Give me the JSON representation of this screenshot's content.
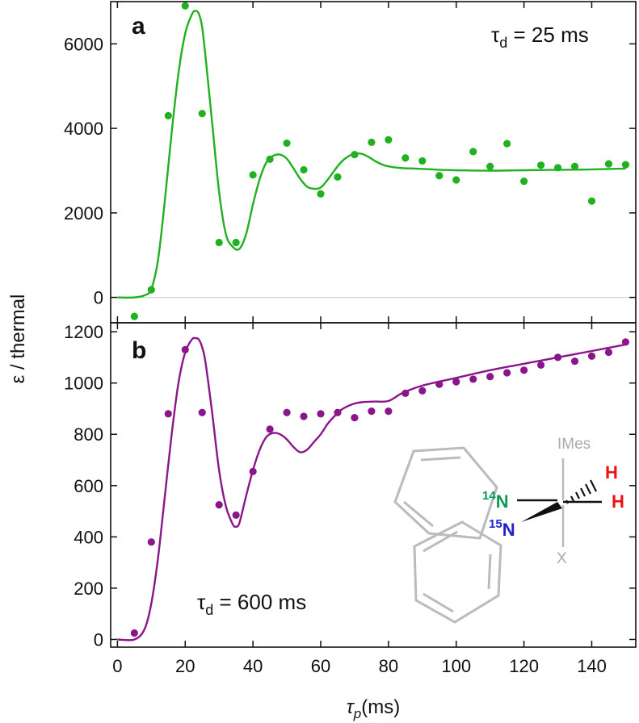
{
  "ylabel": "ε / thermal",
  "xlabel": "τp (ms)",
  "xlabel_main": "τ",
  "xlabel_sub": "p",
  "xlabel_unit": "(ms)",
  "colors": {
    "panel_a": "#1fb11f",
    "panel_b": "#8b168b",
    "n14": "#0a9a55",
    "n15": "#1f1fd0",
    "h": "#ee1111",
    "grey": "#b8b8b8"
  },
  "chart_data": [
    {
      "type": "scatter",
      "panel": "a",
      "title": "a",
      "annotation": {
        "symbol": "τ",
        "sub": "d",
        "text": " = 25 ms"
      },
      "xlabel": "τp (ms)",
      "ylabel": "ε / thermal",
      "xlim": [
        -2,
        153
      ],
      "ylim": [
        -600,
        7000
      ],
      "xticks": [
        0,
        20,
        40,
        60,
        80,
        100,
        120,
        140
      ],
      "yticks": [
        0,
        2000,
        4000,
        6000
      ],
      "series": [
        {
          "name": "data",
          "x": [
            5,
            10,
            15,
            20,
            25,
            30,
            35,
            40,
            45,
            50,
            55,
            60,
            65,
            70,
            75,
            80,
            85,
            90,
            95,
            100,
            105,
            110,
            115,
            120,
            125,
            130,
            135,
            140,
            145,
            150
          ],
          "y": [
            -450,
            180,
            4300,
            6900,
            4350,
            1300,
            1300,
            2900,
            3270,
            3650,
            3020,
            2450,
            2850,
            3380,
            3670,
            3730,
            3300,
            3230,
            2880,
            2780,
            3450,
            3100,
            3640,
            2750,
            3130,
            3070,
            3100,
            2280,
            3160,
            3140
          ]
        },
        {
          "name": "fit",
          "x": [
            0,
            5,
            8,
            10,
            12,
            14,
            16,
            18,
            20,
            22,
            23,
            24,
            25,
            26,
            28,
            30,
            32,
            34,
            36,
            38,
            40,
            42,
            44,
            46,
            48,
            50,
            52,
            54,
            56,
            58,
            60,
            62,
            64,
            66,
            68,
            70,
            72,
            74,
            76,
            78,
            80,
            84,
            88,
            95,
            100,
            110,
            120,
            130,
            140,
            150
          ],
          "y": [
            0,
            0,
            50,
            200,
            900,
            2300,
            3900,
            5300,
            6250,
            6700,
            6780,
            6720,
            6400,
            5700,
            4100,
            2500,
            1500,
            1200,
            1150,
            1500,
            2200,
            2800,
            3200,
            3350,
            3380,
            3280,
            3050,
            2800,
            2620,
            2570,
            2600,
            2780,
            3000,
            3200,
            3330,
            3400,
            3400,
            3330,
            3230,
            3150,
            3100,
            3060,
            3050,
            3020,
            3010,
            3000,
            3010,
            3020,
            3030,
            3050
          ]
        }
      ]
    },
    {
      "type": "scatter",
      "panel": "b",
      "title": "b",
      "annotation": {
        "symbol": "τ",
        "sub": "d",
        "text": " = 600 ms"
      },
      "xlabel": "τp (ms)",
      "ylabel": "ε / thermal",
      "xlim": [
        -2,
        153
      ],
      "ylim": [
        -30,
        1235
      ],
      "xticks": [
        0,
        20,
        40,
        60,
        80,
        100,
        120,
        140
      ],
      "yticks": [
        0,
        200,
        400,
        600,
        800,
        1000,
        1200
      ],
      "series": [
        {
          "name": "data",
          "x": [
            5,
            10,
            15,
            20,
            25,
            30,
            35,
            40,
            45,
            50,
            55,
            60,
            65,
            70,
            75,
            80,
            85,
            90,
            95,
            100,
            105,
            110,
            115,
            120,
            125,
            130,
            135,
            140,
            145,
            150
          ],
          "y": [
            25,
            380,
            880,
            1130,
            885,
            525,
            485,
            655,
            820,
            885,
            870,
            880,
            885,
            865,
            890,
            890,
            960,
            970,
            995,
            1005,
            1015,
            1025,
            1040,
            1050,
            1070,
            1100,
            1085,
            1105,
            1120,
            1160
          ]
        },
        {
          "name": "fit",
          "x": [
            0,
            5,
            8,
            10,
            12,
            14,
            16,
            18,
            20,
            22,
            23,
            24,
            25,
            26,
            28,
            30,
            32,
            34,
            35,
            36,
            38,
            40,
            42,
            44,
            46,
            48,
            50,
            52,
            54,
            56,
            58,
            60,
            62,
            64,
            66,
            68,
            70,
            72,
            74,
            76,
            80,
            84,
            90,
            100,
            110,
            120,
            130,
            140,
            150
          ],
          "y": [
            0,
            0,
            40,
            140,
            320,
            560,
            800,
            1000,
            1120,
            1170,
            1175,
            1170,
            1140,
            1080,
            880,
            660,
            520,
            450,
            440,
            455,
            560,
            660,
            740,
            790,
            805,
            800,
            780,
            750,
            730,
            740,
            770,
            800,
            840,
            870,
            895,
            910,
            920,
            925,
            927,
            928,
            930,
            960,
            990,
            1020,
            1050,
            1075,
            1100,
            1125,
            1150
          ]
        }
      ]
    }
  ],
  "molecule": {
    "n14_label": "N",
    "n14_mass": "14",
    "n15_label": "N",
    "n15_mass": "15",
    "h1": "H",
    "h2": "H",
    "imes": "IMes",
    "x_ligand": "X"
  }
}
